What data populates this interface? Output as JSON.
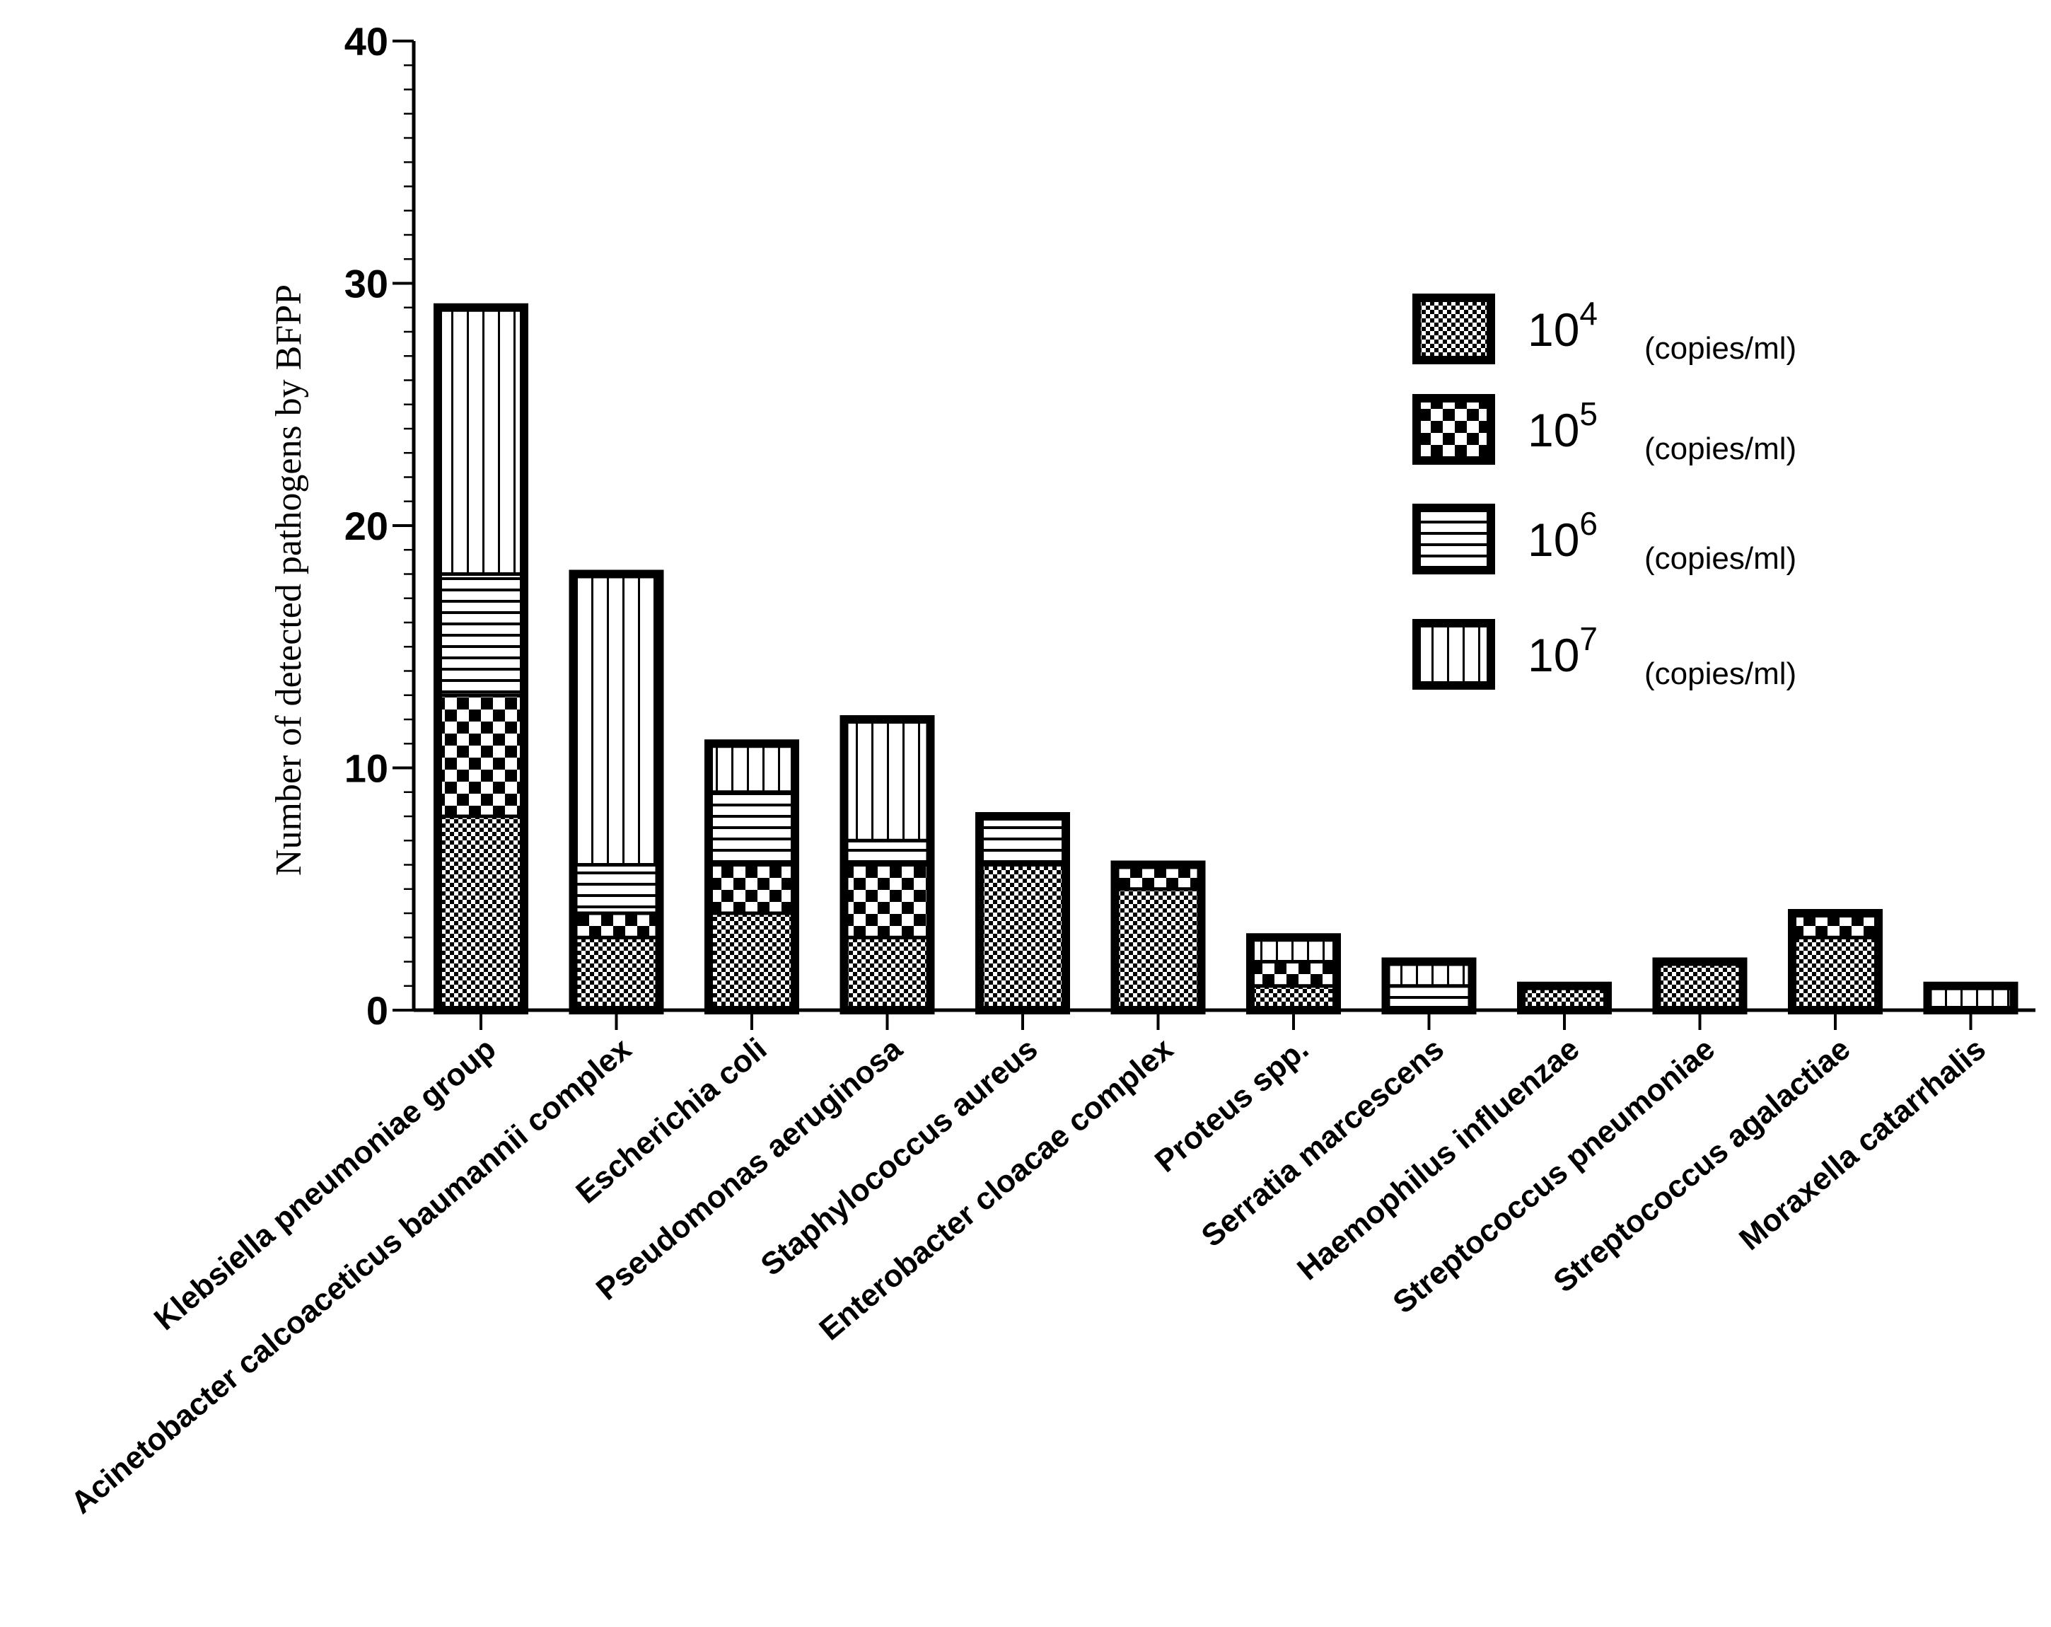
{
  "chart_data": {
    "type": "bar",
    "stacked": true,
    "title": "",
    "xlabel": "",
    "ylabel": "Number of detected pathogens by BFPP",
    "ylim": [
      0,
      40
    ],
    "yticks": [
      "0",
      "10",
      "20",
      "30",
      "40"
    ],
    "categories": [
      "Klebsiella pneumoniae group",
      "Acinetobacter calcoaceticus baumannii complex",
      "Escherichia coli",
      "Pseudomonas aeruginosa",
      "Staphylococcus aureus",
      "Enterobacter cloacae complex",
      "Proteus spp.",
      "Serratia marcescens",
      "Haemophilus influenzae",
      "Streptococcus pneumoniae",
      "Streptococcus agalactiae",
      "Moraxella catarrhalis"
    ],
    "series": [
      {
        "name": "10^4 (copies/ml)",
        "base": "10",
        "exp": "4",
        "unit": "(copies/ml)",
        "pattern": "fine-check",
        "values": [
          8,
          3,
          4,
          3,
          6,
          5,
          1,
          0,
          1,
          2,
          3,
          0
        ]
      },
      {
        "name": "10^5 (copies/ml)",
        "base": "10",
        "exp": "5",
        "unit": "(copies/ml)",
        "pattern": "big-check",
        "values": [
          5,
          1,
          2,
          3,
          0,
          1,
          1,
          0,
          0,
          0,
          1,
          0
        ]
      },
      {
        "name": "10^6 (copies/ml)",
        "base": "10",
        "exp": "6",
        "unit": "(copies/ml)",
        "pattern": "horizontal",
        "values": [
          5,
          2,
          3,
          1,
          2,
          0,
          0,
          1,
          0,
          0,
          0,
          0
        ]
      },
      {
        "name": "10^7 (copies/ml)",
        "base": "10",
        "exp": "7",
        "unit": "(copies/ml)",
        "pattern": "vertical",
        "values": [
          11,
          12,
          2,
          5,
          0,
          0,
          1,
          1,
          0,
          0,
          0,
          1
        ]
      }
    ],
    "legend_position": "right"
  }
}
